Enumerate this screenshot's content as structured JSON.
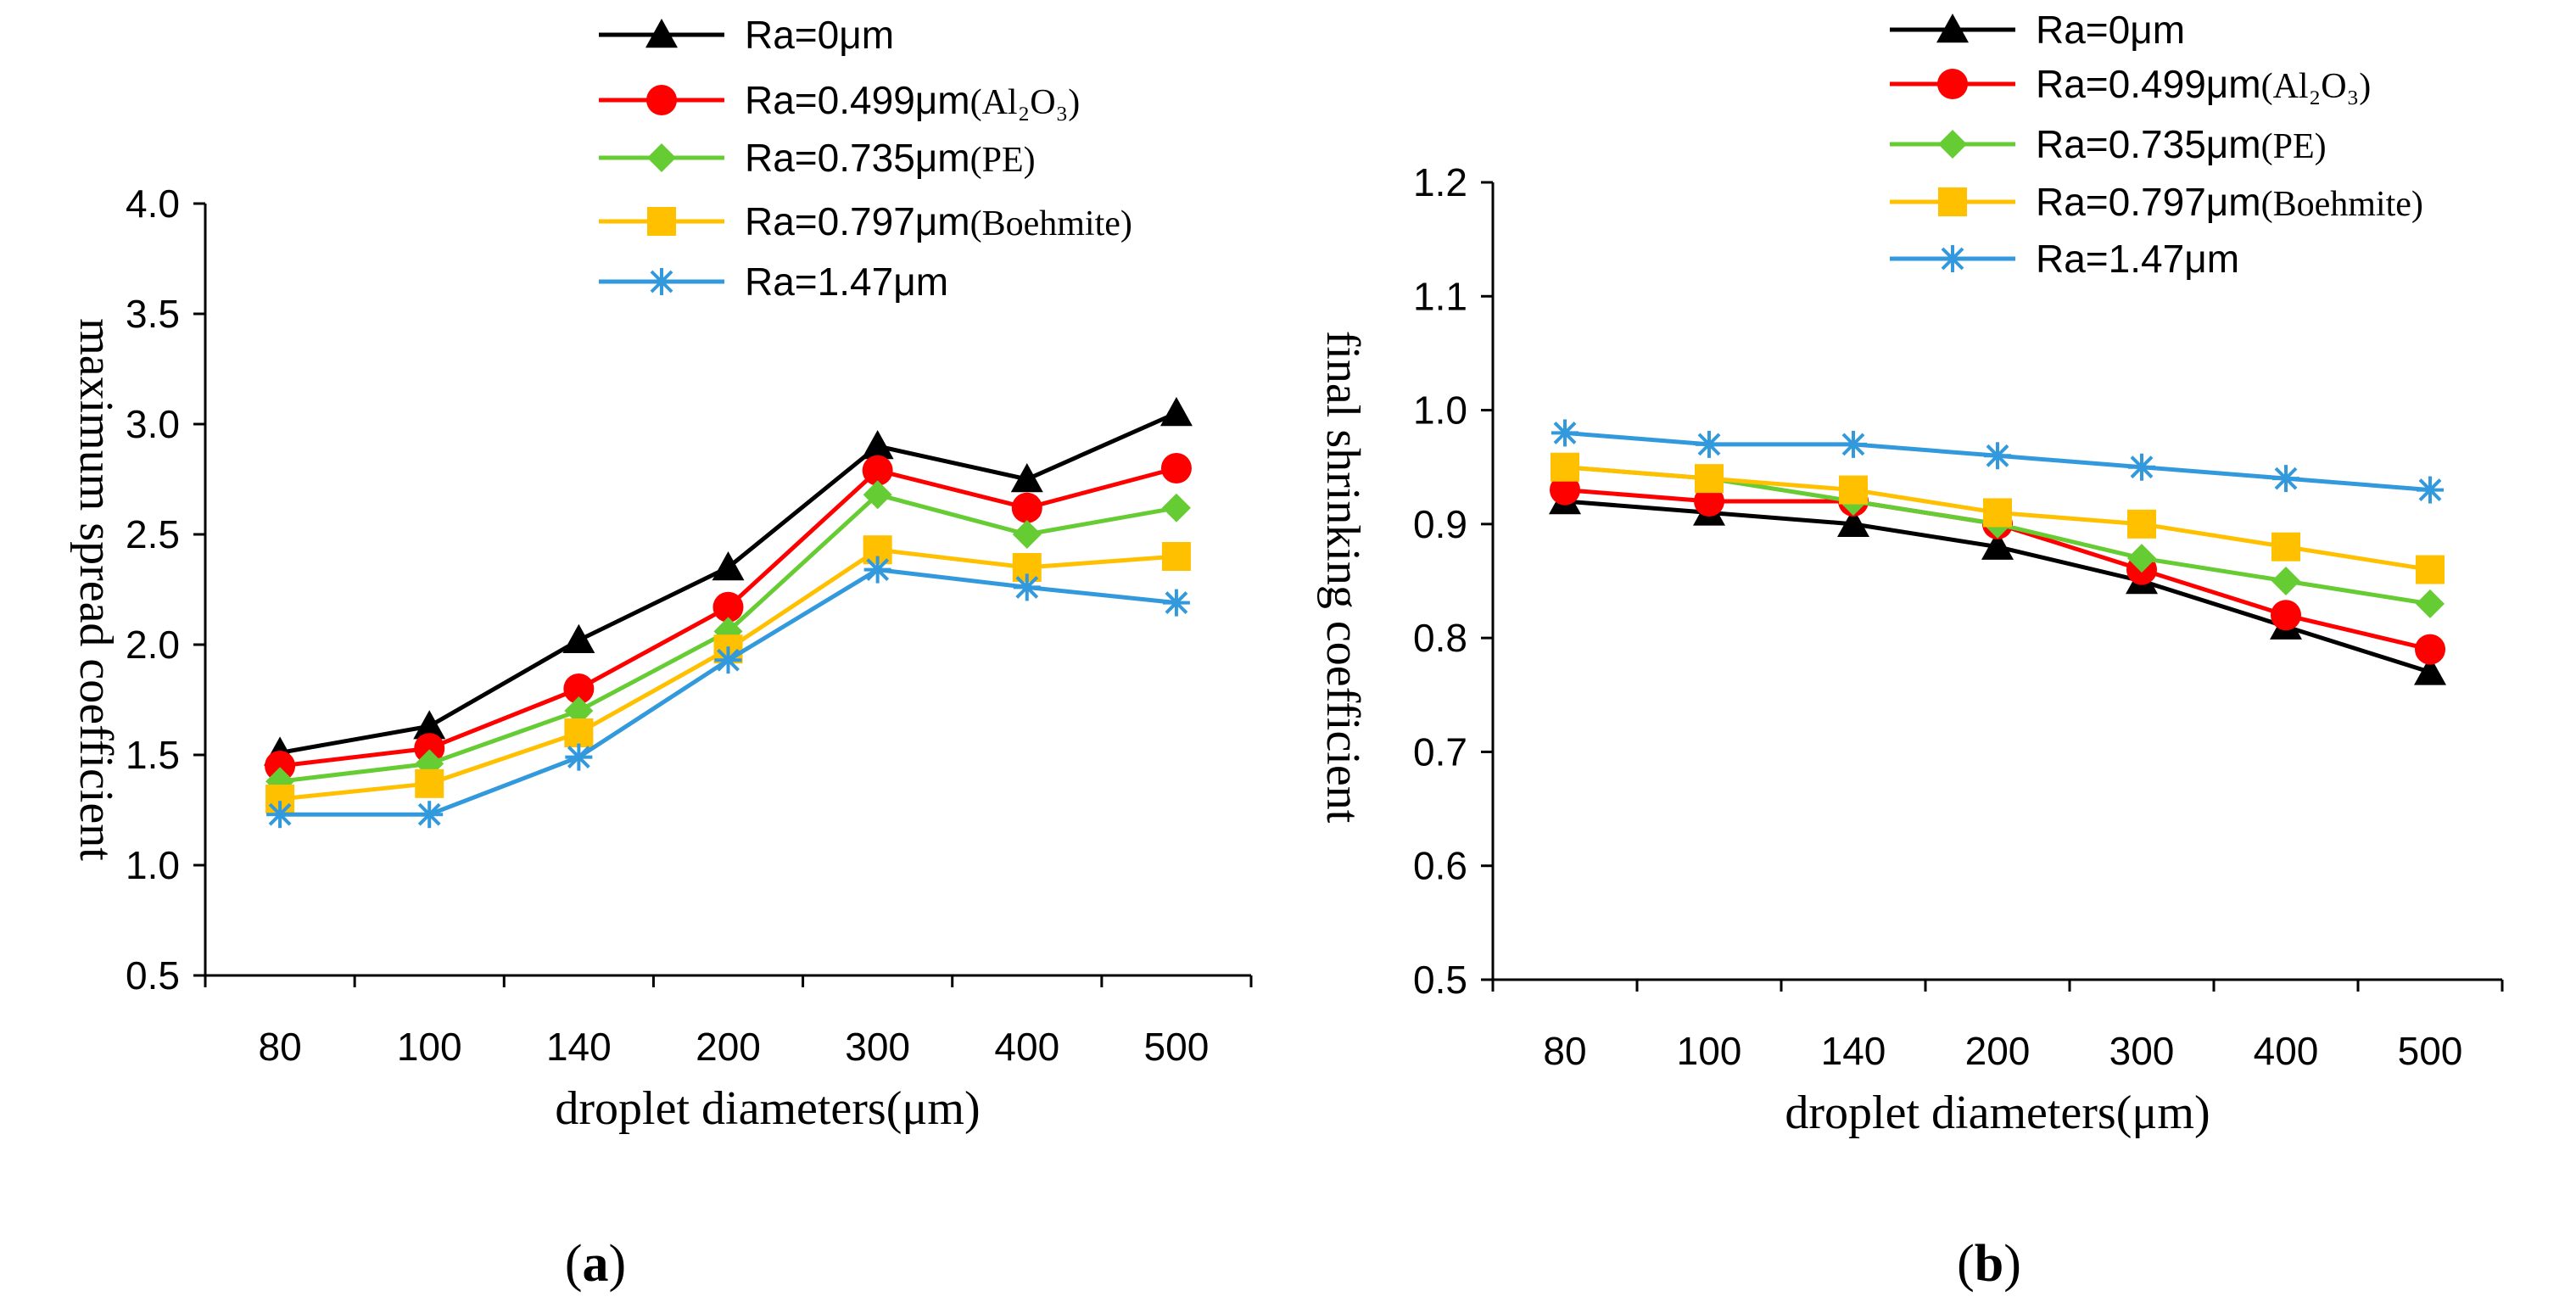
{
  "chart_data": [
    {
      "type": "line",
      "panel_label": "a",
      "title": "",
      "xlabel": "droplet diameters(μm)",
      "ylabel": "maximum spread coefficient",
      "categories": [
        "80",
        "100",
        "140",
        "200",
        "300",
        "400",
        "500"
      ],
      "yticks": [
        "0.5",
        "1.0",
        "1.5",
        "2.0",
        "2.5",
        "3.0",
        "3.5",
        "4.0"
      ],
      "ylim": [
        0.5,
        4.0
      ],
      "grid": false,
      "legend_position": "top",
      "series": [
        {
          "name": "Ra=0μm",
          "note": "",
          "color": "#000000",
          "marker": "triangle",
          "values": [
            1.51,
            1.63,
            2.02,
            2.35,
            2.9,
            2.75,
            3.05
          ]
        },
        {
          "name": "Ra=0.499μm",
          "note": "(Al₂O₃)",
          "color": "#ff0000",
          "marker": "circle",
          "values": [
            1.45,
            1.53,
            1.8,
            2.17,
            2.79,
            2.62,
            2.8
          ]
        },
        {
          "name": "Ra=0.735μm",
          "note": "(PE)",
          "color": "#66cc33",
          "marker": "diamond",
          "values": [
            1.38,
            1.46,
            1.7,
            2.06,
            2.68,
            2.5,
            2.62
          ]
        },
        {
          "name": "Ra=0.797μm",
          "note": "(Boehmite)",
          "color": "#ffc000",
          "marker": "square",
          "values": [
            1.3,
            1.37,
            1.6,
            1.98,
            2.43,
            2.35,
            2.4
          ]
        },
        {
          "name": "Ra=1.47μm",
          "note": "",
          "color": "#3399dd",
          "marker": "star",
          "values": [
            1.23,
            1.23,
            1.49,
            1.93,
            2.34,
            2.26,
            2.19
          ]
        }
      ]
    },
    {
      "type": "line",
      "panel_label": "b",
      "title": "",
      "xlabel": "droplet diameters(μm)",
      "ylabel": "final shrinking coefficient",
      "categories": [
        "80",
        "100",
        "140",
        "200",
        "300",
        "400",
        "500"
      ],
      "yticks": [
        "0.5",
        "0.6",
        "0.7",
        "0.8",
        "0.9",
        "1.0",
        "1.1",
        "1.2"
      ],
      "ylim": [
        0.5,
        1.2
      ],
      "grid": false,
      "legend_position": "top",
      "series": [
        {
          "name": "Ra=0μm",
          "note": "",
          "color": "#000000",
          "marker": "triangle",
          "values": [
            0.92,
            0.91,
            0.9,
            0.88,
            0.85,
            0.81,
            0.77
          ]
        },
        {
          "name": "Ra=0.499μm",
          "note": "(Al₂O₃)",
          "color": "#ff0000",
          "marker": "circle",
          "values": [
            0.93,
            0.92,
            0.92,
            0.9,
            0.86,
            0.82,
            0.79
          ]
        },
        {
          "name": "Ra=0.735μm",
          "note": "(PE)",
          "color": "#66cc33",
          "marker": "diamond",
          "values": [
            0.95,
            0.94,
            0.92,
            0.9,
            0.87,
            0.85,
            0.83
          ]
        },
        {
          "name": "Ra=0.797μm",
          "note": "(Boehmite)",
          "color": "#ffc000",
          "marker": "square",
          "values": [
            0.95,
            0.94,
            0.93,
            0.91,
            0.9,
            0.88,
            0.86
          ]
        },
        {
          "name": "Ra=1.47μm",
          "note": "",
          "color": "#3399dd",
          "marker": "star",
          "values": [
            0.98,
            0.97,
            0.97,
            0.96,
            0.95,
            0.94,
            0.93
          ]
        }
      ]
    }
  ]
}
